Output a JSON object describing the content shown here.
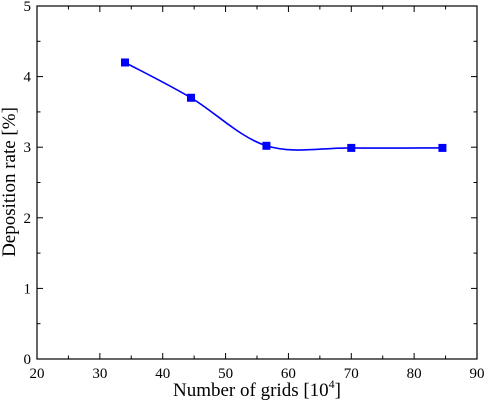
{
  "chart_data": {
    "type": "line",
    "title": "",
    "xlabel": "Number of grids [10",
    "xlabel_superscript": "4",
    "xlabel_suffix": "]",
    "ylabel": "Deposition rate [%]",
    "xlim": [
      20,
      90
    ],
    "ylim": [
      0,
      5
    ],
    "xticks": [
      "20",
      "30",
      "40",
      "50",
      "60",
      "70",
      "80",
      "90"
    ],
    "yticks": [
      "0",
      "1",
      "2",
      "3",
      "4",
      "5"
    ],
    "grid": false,
    "legend": "none",
    "series": [
      {
        "x": [
          34,
          44.5,
          56.5,
          70,
          84.5
        ],
        "y": [
          4.2,
          3.7,
          3.02,
          2.99,
          2.99
        ],
        "color": "#0000ff",
        "marker": "square",
        "line": "smooth-spline"
      }
    ]
  }
}
